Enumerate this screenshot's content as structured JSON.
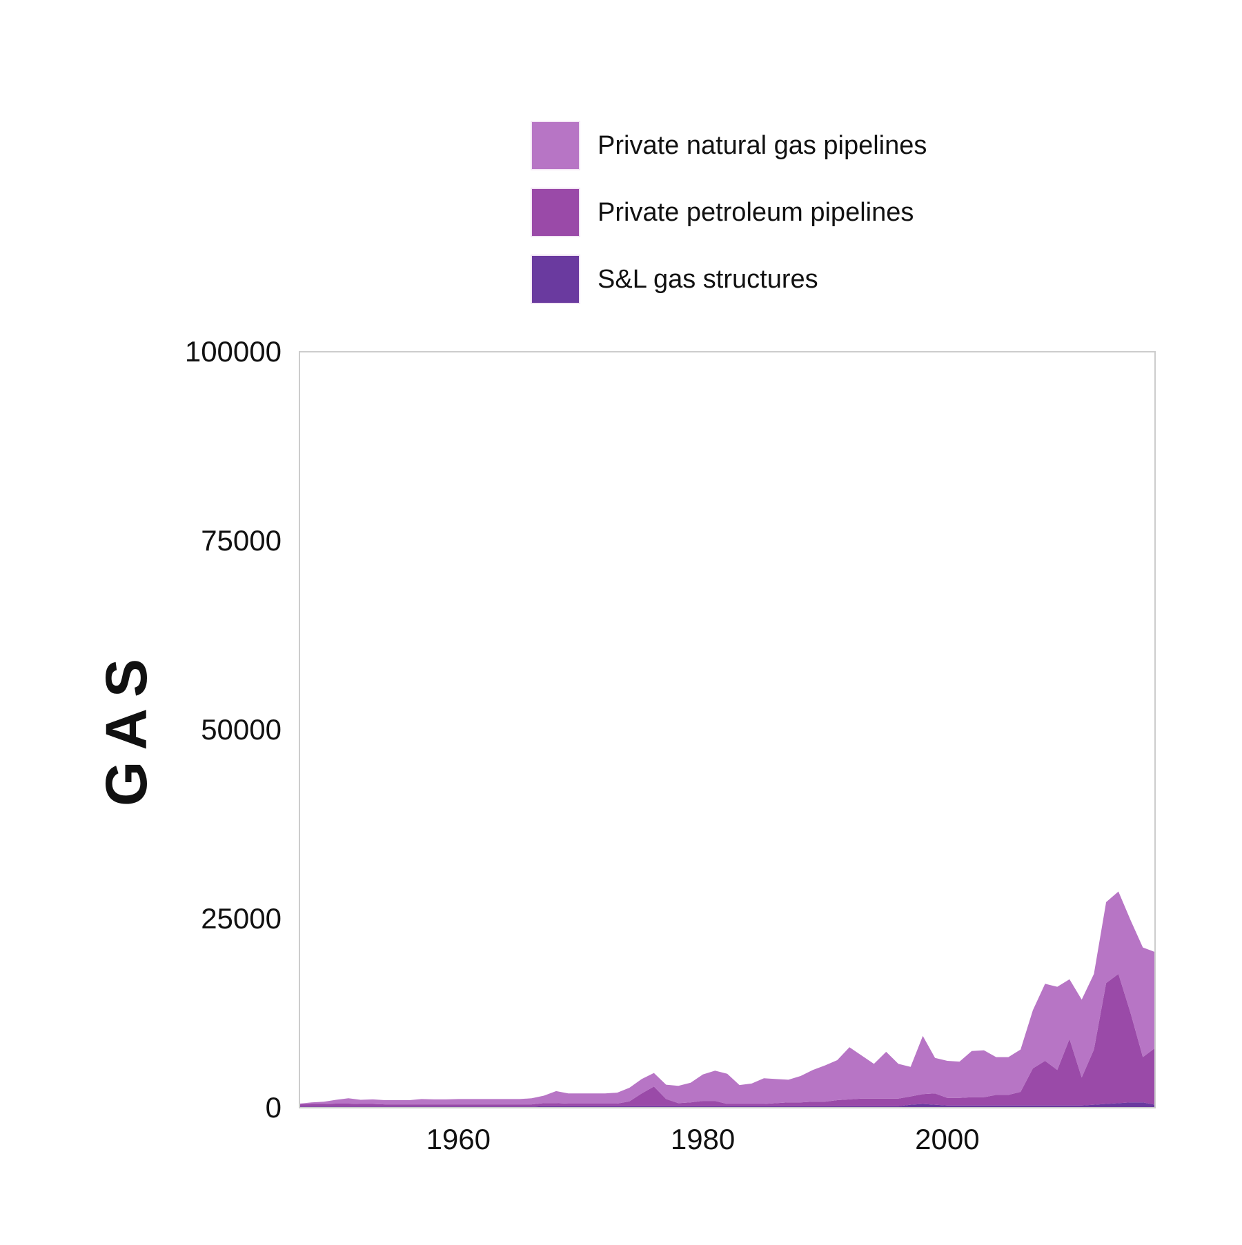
{
  "colors": {
    "nat_gas": "#b775c5",
    "petroleum": "#9a4aa8",
    "sl_gas": "#6a3a9f",
    "frame": "#cccccc",
    "text": "#111111"
  },
  "chart_data": {
    "type": "area",
    "stacked": true,
    "ylabel": "GAS",
    "xlabel": "",
    "xlim": [
      1947,
      2017
    ],
    "ylim": [
      0,
      100000
    ],
    "x_ticks": [
      1960,
      1980,
      2000
    ],
    "y_ticks": [
      0,
      25000,
      50000,
      75000,
      100000
    ],
    "legend_position": "top",
    "x": [
      1947,
      1948,
      1949,
      1950,
      1951,
      1952,
      1953,
      1954,
      1955,
      1956,
      1957,
      1958,
      1959,
      1960,
      1961,
      1962,
      1963,
      1964,
      1965,
      1966,
      1967,
      1968,
      1969,
      1970,
      1971,
      1972,
      1973,
      1974,
      1975,
      1976,
      1977,
      1978,
      1979,
      1980,
      1981,
      1982,
      1983,
      1984,
      1985,
      1986,
      1987,
      1988,
      1989,
      1990,
      1991,
      1992,
      1993,
      1994,
      1995,
      1996,
      1997,
      1998,
      1999,
      2000,
      2001,
      2002,
      2003,
      2004,
      2005,
      2006,
      2007,
      2008,
      2009,
      2010,
      2011,
      2012,
      2013,
      2014,
      2015,
      2016,
      2017
    ],
    "series": [
      {
        "name": "S&L gas structures",
        "color_key": "sl_gas",
        "values": [
          150,
          150,
          150,
          150,
          150,
          150,
          150,
          150,
          150,
          150,
          150,
          150,
          150,
          150,
          150,
          150,
          150,
          150,
          150,
          150,
          200,
          200,
          200,
          200,
          200,
          200,
          200,
          200,
          200,
          200,
          200,
          200,
          200,
          200,
          200,
          200,
          200,
          200,
          200,
          200,
          200,
          200,
          200,
          200,
          200,
          200,
          200,
          200,
          200,
          200,
          400,
          500,
          400,
          300,
          300,
          300,
          300,
          300,
          300,
          300,
          300,
          300,
          300,
          300,
          300,
          400,
          500,
          600,
          700,
          700,
          400
        ]
      },
      {
        "name": "Private petroleum pipelines",
        "color_key": "petroleum",
        "values": [
          300,
          350,
          350,
          400,
          400,
          350,
          350,
          300,
          300,
          300,
          300,
          300,
          300,
          300,
          300,
          300,
          300,
          300,
          300,
          300,
          400,
          400,
          350,
          350,
          350,
          350,
          350,
          650,
          1700,
          2600,
          950,
          400,
          500,
          700,
          700,
          300,
          300,
          300,
          300,
          400,
          500,
          500,
          600,
          600,
          800,
          900,
          1000,
          1000,
          1000,
          1000,
          1100,
          1300,
          1500,
          1000,
          1000,
          1100,
          1100,
          1400,
          1400,
          1800,
          4900,
          5900,
          4700,
          8800,
          3700,
          7300,
          16000,
          17100,
          11800,
          6000,
          7500
        ]
      },
      {
        "name": "Private natural gas pipelines",
        "color_key": "nat_gas",
        "values": [
          100,
          200,
          300,
          500,
          700,
          550,
          600,
          550,
          550,
          550,
          700,
          650,
          650,
          700,
          700,
          700,
          700,
          700,
          700,
          800,
          1000,
          1600,
          1350,
          1350,
          1350,
          1350,
          1450,
          1800,
          1900,
          1800,
          1900,
          2300,
          2600,
          3500,
          4000,
          4000,
          2500,
          2700,
          3400,
          3200,
          3000,
          3500,
          4200,
          4800,
          5300,
          6900,
          5700,
          4600,
          6200,
          4600,
          3900,
          7700,
          4700,
          4900,
          4800,
          6100,
          6200,
          5000,
          5000,
          5600,
          7700,
          10200,
          11000,
          7900,
          10300,
          10000,
          10700,
          10900,
          12300,
          14500,
          12700
        ]
      }
    ]
  }
}
